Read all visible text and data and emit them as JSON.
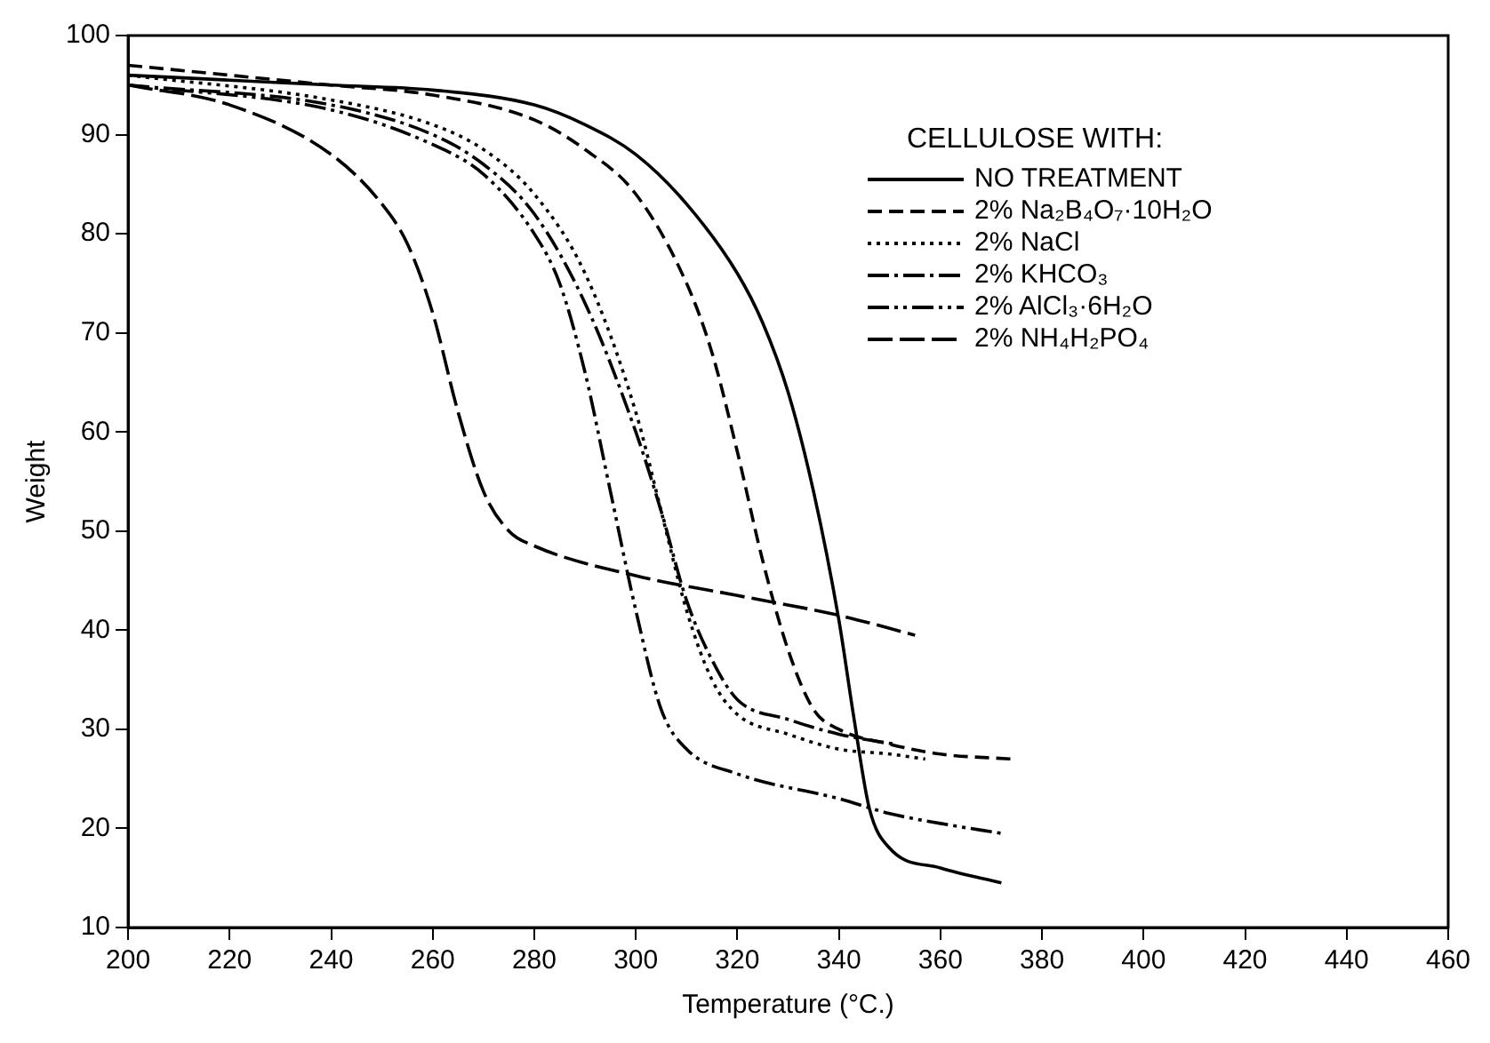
{
  "chart_data": {
    "type": "line",
    "xlabel": "Temperature (°C.)",
    "ylabel": "Weight",
    "legend_title": "CELLULOSE WITH:",
    "legend": "top right",
    "grid": false,
    "marker": "none",
    "xlim": [
      200,
      460
    ],
    "xticks": [
      200,
      220,
      240,
      260,
      280,
      300,
      320,
      340,
      360,
      380,
      400,
      420,
      440,
      460
    ],
    "ylim": [
      10,
      100
    ],
    "yticks": [
      10,
      20,
      30,
      40,
      50,
      60,
      70,
      80,
      90,
      100
    ],
    "series": [
      {
        "name": "NO TREATMENT",
        "color": "#000000",
        "line_style": "solid",
        "x": [
          200,
          220,
          240,
          260,
          280,
          290,
          300,
          310,
          320,
          325,
          330,
          335,
          340,
          343,
          346,
          350,
          360,
          372
        ],
        "values": [
          96,
          95.5,
          95,
          94.5,
          93,
          91,
          88,
          83,
          76,
          71,
          64,
          54,
          41,
          31,
          22,
          18,
          16,
          14.5
        ]
      },
      {
        "name": "2% Na₂B₄O₇·10H₂O",
        "color": "#000000",
        "line_style": "dashed",
        "x": [
          200,
          240,
          260,
          280,
          290,
          300,
          310,
          315,
          320,
          325,
          330,
          335,
          340,
          350,
          360,
          374
        ],
        "values": [
          97,
          95,
          94,
          91.5,
          88.5,
          84,
          75,
          68,
          58,
          47,
          38,
          32,
          30,
          28.5,
          27.5,
          27
        ]
      },
      {
        "name": "2% NaCl",
        "color": "#000000",
        "line_style": "dotted",
        "x": [
          200,
          240,
          260,
          270,
          280,
          290,
          300,
          305,
          310,
          315,
          320,
          330,
          340,
          350,
          357
        ],
        "values": [
          96,
          93.5,
          91,
          88.5,
          84,
          76,
          62,
          52,
          42,
          35,
          31.5,
          29.5,
          28,
          27.5,
          27
        ]
      },
      {
        "name": "2% KHCO₃",
        "color": "#000000",
        "line_style": "dashed",
        "x": [
          200,
          240,
          260,
          270,
          280,
          290,
          300,
          305,
          310,
          315,
          320,
          330,
          340,
          351
        ],
        "values": [
          95,
          93,
          90,
          87,
          82,
          73,
          60,
          52,
          43,
          37,
          33,
          31,
          29.5,
          28.5
        ]
      },
      {
        "name": "2% AlCl₃·6H₂O",
        "color": "#000000",
        "line_style": "dashed",
        "x": [
          200,
          240,
          260,
          270,
          280,
          285,
          290,
          295,
          300,
          305,
          310,
          320,
          340,
          350,
          360,
          372
        ],
        "values": [
          95,
          92.5,
          89,
          86,
          80,
          75,
          66,
          54,
          42,
          32,
          28,
          25.5,
          23,
          21.5,
          20.5,
          19.5
        ]
      },
      {
        "name": "2% NH₄H₂PO₄",
        "color": "#000000",
        "line_style": "dashed",
        "x": [
          200,
          220,
          240,
          250,
          255,
          260,
          265,
          270,
          275,
          280,
          300,
          320,
          340,
          355
        ],
        "values": [
          95,
          93,
          88,
          83,
          79,
          72,
          62,
          54,
          50,
          48.5,
          45.5,
          43.5,
          41.5,
          39.5
        ]
      }
    ]
  }
}
